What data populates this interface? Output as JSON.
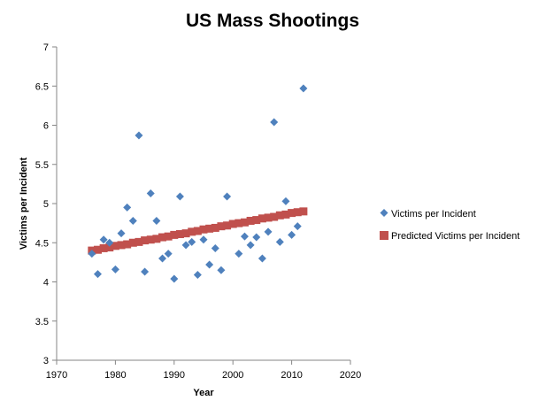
{
  "chart_data": {
    "type": "scatter",
    "title": "US Mass Shootings",
    "xlabel": "Year",
    "ylabel": "Victims per Incident",
    "xlim": [
      1970,
      2020
    ],
    "ylim": [
      3,
      7
    ],
    "x_ticks": [
      "1970",
      "1980",
      "1990",
      "2000",
      "2010",
      "2020"
    ],
    "y_ticks": [
      "3",
      "3.5",
      "4",
      "4.5",
      "5",
      "5.5",
      "6",
      "6.5",
      "7"
    ],
    "grid": false,
    "legend_position": "right",
    "series": [
      {
        "name": "Victims per Incident",
        "marker": "diamond",
        "color": "#4F81BD",
        "points": [
          [
            1976,
            4.36
          ],
          [
            1977,
            4.1
          ],
          [
            1978,
            4.54
          ],
          [
            1979,
            4.5
          ],
          [
            1980,
            4.16
          ],
          [
            1981,
            4.62
          ],
          [
            1982,
            4.95
          ],
          [
            1983,
            4.78
          ],
          [
            1984,
            5.87
          ],
          [
            1985,
            4.13
          ],
          [
            1986,
            5.13
          ],
          [
            1987,
            4.78
          ],
          [
            1988,
            4.3
          ],
          [
            1989,
            4.36
          ],
          [
            1990,
            4.04
          ],
          [
            1991,
            5.09
          ],
          [
            1992,
            4.47
          ],
          [
            1993,
            4.51
          ],
          [
            1994,
            4.09
          ],
          [
            1995,
            4.54
          ],
          [
            1996,
            4.22
          ],
          [
            1997,
            4.43
          ],
          [
            1998,
            4.15
          ],
          [
            1999,
            5.09
          ],
          [
            2001,
            4.36
          ],
          [
            2002,
            4.58
          ],
          [
            2003,
            4.47
          ],
          [
            2004,
            4.57
          ],
          [
            2005,
            4.3
          ],
          [
            2006,
            4.64
          ],
          [
            2007,
            6.04
          ],
          [
            2008,
            4.51
          ],
          [
            2009,
            5.03
          ],
          [
            2010,
            4.6
          ],
          [
            2011,
            4.71
          ],
          [
            2012,
            6.47
          ]
        ]
      },
      {
        "name": "Predicted Victims per Incident",
        "marker": "square",
        "color": "#C0504D",
        "points": [
          [
            1976,
            4.4
          ],
          [
            1977,
            4.41
          ],
          [
            1978,
            4.43
          ],
          [
            1979,
            4.44
          ],
          [
            1980,
            4.46
          ],
          [
            1981,
            4.47
          ],
          [
            1982,
            4.48
          ],
          [
            1983,
            4.5
          ],
          [
            1984,
            4.51
          ],
          [
            1985,
            4.53
          ],
          [
            1986,
            4.54
          ],
          [
            1987,
            4.55
          ],
          [
            1988,
            4.57
          ],
          [
            1989,
            4.58
          ],
          [
            1990,
            4.6
          ],
          [
            1991,
            4.61
          ],
          [
            1992,
            4.62
          ],
          [
            1993,
            4.64
          ],
          [
            1994,
            4.65
          ],
          [
            1995,
            4.67
          ],
          [
            1996,
            4.68
          ],
          [
            1997,
            4.69
          ],
          [
            1998,
            4.71
          ],
          [
            1999,
            4.72
          ],
          [
            2000,
            4.74
          ],
          [
            2001,
            4.75
          ],
          [
            2002,
            4.76
          ],
          [
            2003,
            4.78
          ],
          [
            2004,
            4.79
          ],
          [
            2005,
            4.81
          ],
          [
            2006,
            4.82
          ],
          [
            2007,
            4.83
          ],
          [
            2008,
            4.85
          ],
          [
            2009,
            4.86
          ],
          [
            2010,
            4.88
          ],
          [
            2011,
            4.89
          ],
          [
            2012,
            4.9
          ]
        ]
      }
    ]
  }
}
